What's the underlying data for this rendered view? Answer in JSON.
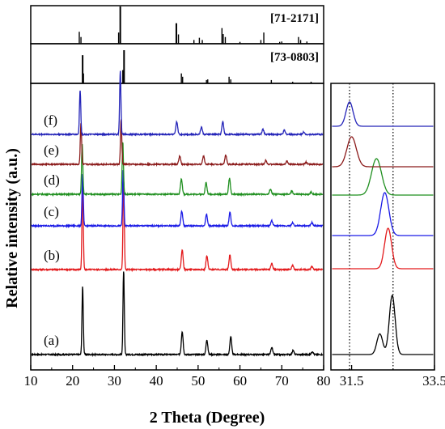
{
  "chart_data": {
    "type": "line",
    "xlabel": "2 Theta (Degree)",
    "ylabel": "Relative intensity (a.u.)",
    "grid": false,
    "main_panel": {
      "xlim": [
        10,
        80
      ],
      "xticks": [
        10,
        20,
        30,
        40,
        50,
        60,
        70,
        80
      ],
      "y_ticks_labeled": false
    },
    "zoom_panel": {
      "xlim": [
        31.0,
        33.5
      ],
      "xtick_labels": [
        "31.5",
        "33.5"
      ],
      "xtick_values": [
        31.5,
        33.5
      ],
      "dotted_reference_lines": [
        31.45,
        32.5
      ]
    },
    "reference_patterns": [
      {
        "label": "[71-2171]",
        "color": "#000000",
        "sticks": [
          [
            21.6,
            0.32
          ],
          [
            22.0,
            0.18
          ],
          [
            31.0,
            0.3
          ],
          [
            31.4,
            1.0
          ],
          [
            44.8,
            0.55
          ],
          [
            45.3,
            0.25
          ],
          [
            49.0,
            0.1
          ],
          [
            50.3,
            0.16
          ],
          [
            51.0,
            0.1
          ],
          [
            55.7,
            0.42
          ],
          [
            56.0,
            0.26
          ],
          [
            56.5,
            0.18
          ],
          [
            60.0,
            0.05
          ],
          [
            65.0,
            0.1
          ],
          [
            65.7,
            0.3
          ],
          [
            69.5,
            0.05
          ],
          [
            70.0,
            0.06
          ],
          [
            74.0,
            0.18
          ],
          [
            74.5,
            0.1
          ],
          [
            76.0,
            0.06
          ]
        ]
      },
      {
        "label": "[73-0803]",
        "color": "#000000",
        "sticks": [
          [
            22.4,
            0.85
          ],
          [
            22.6,
            0.3
          ],
          [
            32.0,
            0.4
          ],
          [
            32.3,
            1.0
          ],
          [
            46.0,
            0.3
          ],
          [
            46.3,
            0.2
          ],
          [
            52.0,
            0.1
          ],
          [
            52.3,
            0.12
          ],
          [
            57.4,
            0.2
          ],
          [
            57.8,
            0.12
          ],
          [
            67.5,
            0.1
          ],
          [
            72.6,
            0.05
          ],
          [
            77.0,
            0.05
          ]
        ]
      }
    ],
    "series": [
      {
        "name": "(a)",
        "color": "#000000",
        "peaks": [
          [
            22.4,
            0.65
          ],
          [
            32.2,
            0.8
          ],
          [
            46.2,
            0.22
          ],
          [
            52.1,
            0.14
          ],
          [
            57.8,
            0.17
          ],
          [
            67.6,
            0.07
          ],
          [
            72.7,
            0.04
          ],
          [
            77.3,
            0.03
          ]
        ],
        "zoom_peaks": [
          [
            32.48,
            1.0
          ],
          [
            32.18,
            0.35
          ]
        ]
      },
      {
        "name": "(b)",
        "color": "#e31a1c",
        "peaks": [
          [
            22.4,
            0.8
          ],
          [
            32.2,
            0.86
          ],
          [
            46.2,
            0.19
          ],
          [
            52.1,
            0.13
          ],
          [
            57.6,
            0.14
          ],
          [
            67.6,
            0.06
          ],
          [
            72.6,
            0.04
          ],
          [
            77.2,
            0.03
          ]
        ],
        "zoom_peaks": [
          [
            32.38,
            1.0
          ]
        ]
      },
      {
        "name": "(c)",
        "color": "#1a1ae6",
        "peaks": [
          [
            22.4,
            0.5
          ],
          [
            32.1,
            0.53
          ],
          [
            46.1,
            0.14
          ],
          [
            52.0,
            0.11
          ],
          [
            57.6,
            0.13
          ],
          [
            67.6,
            0.05
          ],
          [
            72.6,
            0.03
          ],
          [
            77.2,
            0.03
          ]
        ],
        "zoom_peaks": [
          [
            32.3,
            1.0
          ]
        ]
      },
      {
        "name": "(d)",
        "color": "#1f8f1f",
        "peaks": [
          [
            22.3,
            0.48
          ],
          [
            32.0,
            0.5
          ],
          [
            46.0,
            0.15
          ],
          [
            51.9,
            0.11
          ],
          [
            57.5,
            0.15
          ],
          [
            67.3,
            0.05
          ],
          [
            72.4,
            0.03
          ],
          [
            77.0,
            0.02
          ]
        ],
        "zoom_peaks": [
          [
            32.1,
            1.0
          ]
        ]
      },
      {
        "name": "(e)",
        "color": "#8b1a1a",
        "peaks": [
          [
            22.0,
            0.4
          ],
          [
            31.6,
            0.43
          ],
          [
            45.6,
            0.08
          ],
          [
            51.3,
            0.08
          ],
          [
            56.6,
            0.09
          ],
          [
            66.2,
            0.04
          ],
          [
            71.2,
            0.03
          ],
          [
            75.8,
            0.02
          ]
        ],
        "zoom_peaks": [
          [
            31.5,
            1.0
          ]
        ]
      },
      {
        "name": "(f)",
        "color": "#2323b8",
        "peaks": [
          [
            21.8,
            0.42
          ],
          [
            31.4,
            0.6
          ],
          [
            44.9,
            0.12
          ],
          [
            50.8,
            0.07
          ],
          [
            55.9,
            0.12
          ],
          [
            65.5,
            0.05
          ],
          [
            70.6,
            0.04
          ],
          [
            75.2,
            0.02
          ]
        ],
        "zoom_peaks": [
          [
            31.45,
            1.0
          ]
        ]
      }
    ]
  }
}
